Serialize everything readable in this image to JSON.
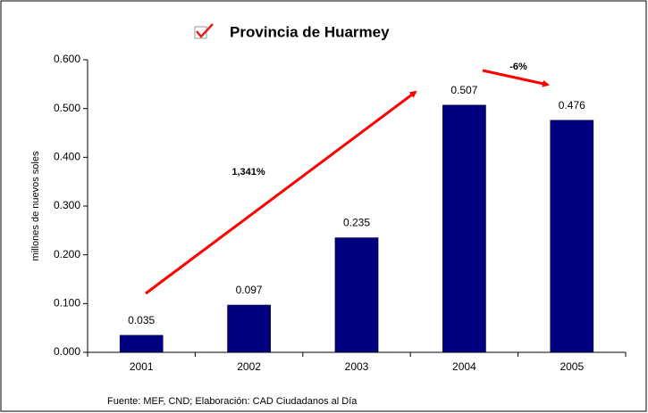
{
  "chart_data": {
    "type": "bar",
    "title": "Provincia de Huarmey",
    "y_label": "millones de nuevos soles",
    "categories": [
      "2001",
      "2002",
      "2003",
      "2004",
      "2005"
    ],
    "values": [
      0.035,
      0.097,
      0.235,
      0.507,
      0.476
    ],
    "color": "#000080",
    "ylim": [
      0,
      0.6
    ],
    "yticks": [
      {
        "value": 0,
        "label": "0.000"
      },
      {
        "value": 0.1,
        "label": "0.100"
      },
      {
        "value": 0.2,
        "label": "0.200"
      },
      {
        "value": 0.3,
        "label": "0.300"
      },
      {
        "value": 0.4,
        "label": "0.400"
      },
      {
        "value": 0.5,
        "label": "0.500"
      },
      {
        "value": 0.6,
        "label": "0.600"
      }
    ],
    "annotations": [
      "1,341%",
      "-6%"
    ],
    "source": "Fuente: MEF, CND; Elaboración: CAD Ciudadanos al Día"
  }
}
